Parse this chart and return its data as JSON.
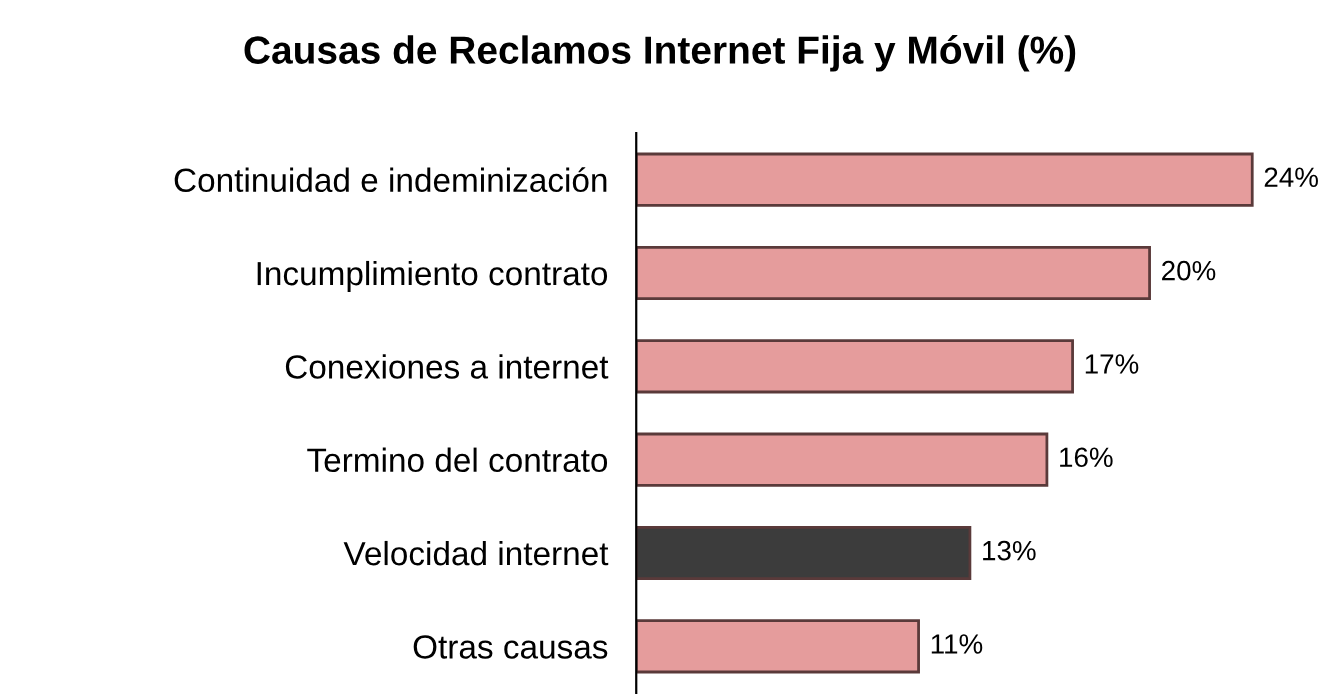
{
  "chart_data": {
    "type": "bar",
    "orientation": "horizontal",
    "title": "Causas de Reclamos Internet Fija y Móvil (%)",
    "categories": [
      "Continuidad e indeminización",
      "Incumplimiento contrato",
      "Conexiones a internet",
      "Termino del contrato",
      "Velocidad internet",
      "Otras causas"
    ],
    "values": [
      24,
      20,
      17,
      16,
      13,
      11
    ],
    "colors": [
      "#e59c9c",
      "#e59c9c",
      "#e59c9c",
      "#e59c9c",
      "#3c3c3c",
      "#e59c9c"
    ],
    "value_labels": [
      "24%",
      "20%",
      "17%",
      "16%",
      "13%",
      "11%"
    ],
    "grid": false,
    "legend": false
  }
}
